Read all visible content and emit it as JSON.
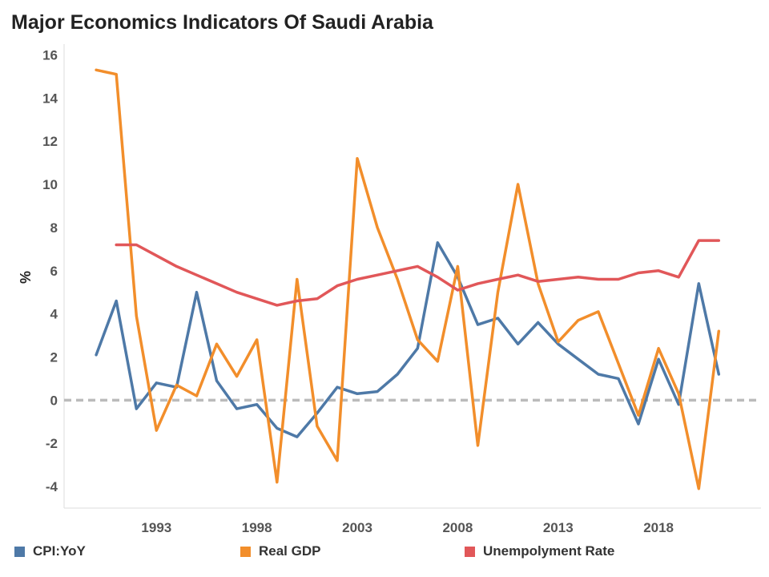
{
  "chart_data": {
    "type": "line",
    "title": "Major Economics Indicators Of Saudi Arabia",
    "xlabel": "",
    "ylabel": "%",
    "x": [
      1990,
      1991,
      1992,
      1993,
      1994,
      1995,
      1996,
      1997,
      1998,
      1999,
      2000,
      2001,
      2002,
      2003,
      2004,
      2005,
      2006,
      2007,
      2008,
      2009,
      2010,
      2011,
      2012,
      2013,
      2014,
      2015,
      2016,
      2017,
      2018,
      2019,
      2020,
      2021
    ],
    "xlim": [
      1988.4,
      2023.5
    ],
    "ylim": [
      -5,
      16.5
    ],
    "xticks": [
      1993,
      1998,
      2003,
      2008,
      2013,
      2018
    ],
    "yticks": [
      -4,
      -2,
      0,
      2,
      4,
      6,
      8,
      10,
      12,
      14,
      16
    ],
    "reference_line": {
      "y": 0,
      "style": "dashed",
      "color": "#bbbbbb"
    },
    "grid": false,
    "legend_position": "bottom",
    "series": [
      {
        "name": "CPI:YoY",
        "color": "#4E79A7",
        "values": [
          2.1,
          4.6,
          -0.4,
          0.8,
          0.6,
          5.0,
          0.9,
          -0.4,
          -0.2,
          -1.3,
          -1.7,
          -0.6,
          0.6,
          0.3,
          0.4,
          1.2,
          2.4,
          7.3,
          5.7,
          3.5,
          3.8,
          2.6,
          3.6,
          2.6,
          1.9,
          1.2,
          1.0,
          -1.1,
          1.9,
          -0.2,
          5.4,
          1.2
        ]
      },
      {
        "name": "Real GDP",
        "color": "#F28E2B",
        "values": [
          15.3,
          15.1,
          3.9,
          -1.4,
          0.7,
          0.2,
          2.6,
          1.1,
          2.8,
          -3.8,
          5.6,
          -1.2,
          -2.8,
          11.2,
          8.0,
          5.6,
          2.8,
          1.8,
          6.2,
          -2.1,
          5.0,
          10.0,
          5.4,
          2.7,
          3.7,
          4.1,
          1.7,
          -0.7,
          2.4,
          0.3,
          -4.1,
          3.2
        ]
      },
      {
        "name": "Unempolyment Rate",
        "color": "#E15759",
        "values": [
          null,
          7.2,
          7.2,
          6.7,
          6.2,
          5.8,
          5.4,
          5.0,
          4.7,
          4.4,
          4.6,
          4.7,
          5.3,
          5.6,
          5.8,
          6.0,
          6.2,
          5.7,
          5.1,
          5.4,
          5.6,
          5.8,
          5.5,
          5.6,
          5.7,
          5.6,
          5.6,
          5.9,
          6.0,
          5.7,
          7.4,
          7.4
        ]
      }
    ]
  }
}
